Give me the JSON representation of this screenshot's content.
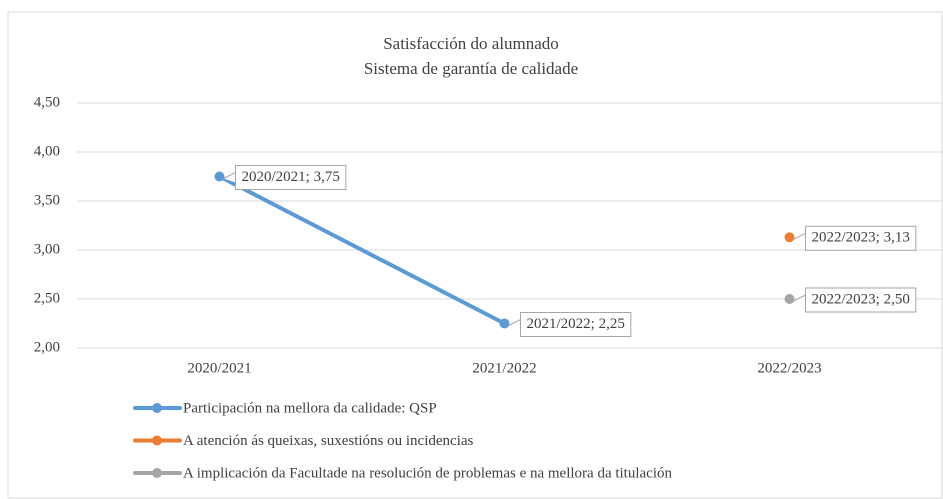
{
  "chart_data": {
    "type": "line",
    "title": "Satisfacción do alumnado",
    "subtitle": "Sistema de garantía de calidade",
    "categories": [
      "2020/2021",
      "2021/2022",
      "2022/2023"
    ],
    "series": [
      {
        "name": "Participación na mellora da calidade: QSP",
        "color": "#5b9bd5",
        "values": [
          3.75,
          2.25,
          null
        ],
        "value_labels": [
          "2020/2021; 3,75",
          "2021/2022; 2,25",
          null
        ]
      },
      {
        "name": "A atención ás queixas, suxestións ou incidencias",
        "color": "#ed7d31",
        "values": [
          null,
          null,
          3.13
        ],
        "value_labels": [
          null,
          null,
          "2022/2023; 3,13"
        ]
      },
      {
        "name": "A implicación da Facultade na resolución de problemas e na mellora da titulación",
        "color": "#a5a5a5",
        "values": [
          null,
          null,
          2.5
        ],
        "value_labels": [
          null,
          null,
          "2022/2023; 2,50"
        ]
      }
    ],
    "ylim": [
      2,
      4.5
    ],
    "yticks": [
      {
        "value": 2,
        "label": "2,00"
      },
      {
        "value": 2.5,
        "label": "2,50"
      },
      {
        "value": 3,
        "label": "3,00"
      },
      {
        "value": 3.5,
        "label": "3,50"
      },
      {
        "value": 4,
        "label": "4,00"
      },
      {
        "value": 4.5,
        "label": "4,50"
      }
    ],
    "grid": true,
    "legend": "bottom"
  }
}
